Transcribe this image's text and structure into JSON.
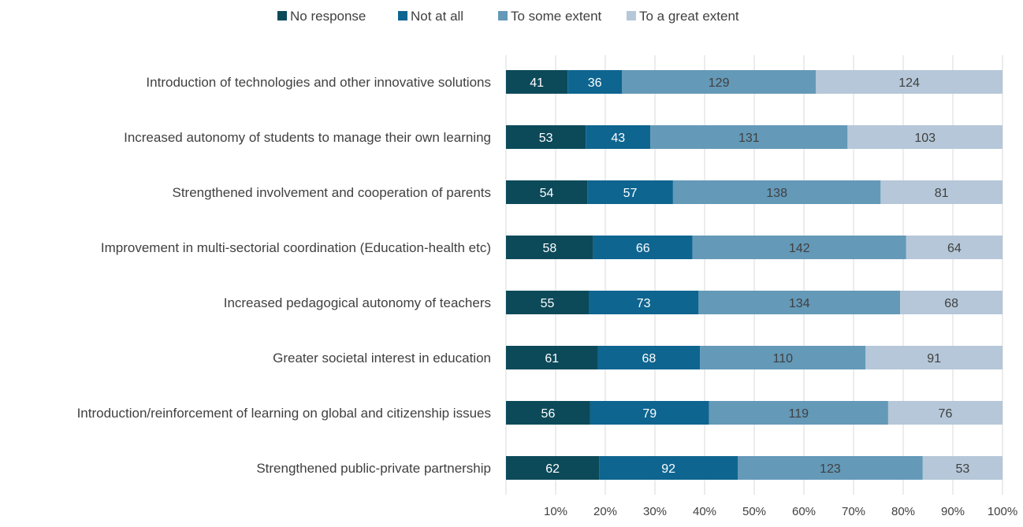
{
  "chart_data": {
    "type": "bar",
    "orientation": "horizontal",
    "stacked": "percent",
    "title": "",
    "xlabel": "",
    "ylabel": "",
    "xlim": [
      0,
      100
    ],
    "x_ticks": [
      "10%",
      "20%",
      "30%",
      "40%",
      "50%",
      "60%",
      "70%",
      "80%",
      "90%",
      "100%"
    ],
    "grid": true,
    "legend_position": "top",
    "categories": [
      "Introduction of technologies and other innovative solutions",
      "Increased autonomy of students to manage their own learning",
      "Strengthened involvement and cooperation of parents",
      "Improvement in multi-sectorial coordination (Education-health etc)",
      "Increased pedagogical autonomy of teachers",
      "Greater societal interest in education",
      "Introduction/reinforcement of learning on global and citizenship issues",
      "Strengthened public-private partnership"
    ],
    "series": [
      {
        "name": "No response",
        "color": "#0c4a5a",
        "label_color": "#ffffff",
        "values": [
          41,
          53,
          54,
          58,
          55,
          61,
          56,
          62
        ]
      },
      {
        "name": "Not at all",
        "color": "#0e6590",
        "label_color": "#ffffff",
        "values": [
          36,
          43,
          57,
          66,
          73,
          68,
          79,
          92
        ]
      },
      {
        "name": "To some extent",
        "color": "#6499b8",
        "label_color": "#404040",
        "values": [
          129,
          131,
          138,
          142,
          134,
          110,
          119,
          123
        ]
      },
      {
        "name": "To a great extent",
        "color": "#b5c7d8",
        "label_color": "#404040",
        "values": [
          124,
          103,
          81,
          64,
          68,
          91,
          76,
          53
        ]
      }
    ]
  }
}
